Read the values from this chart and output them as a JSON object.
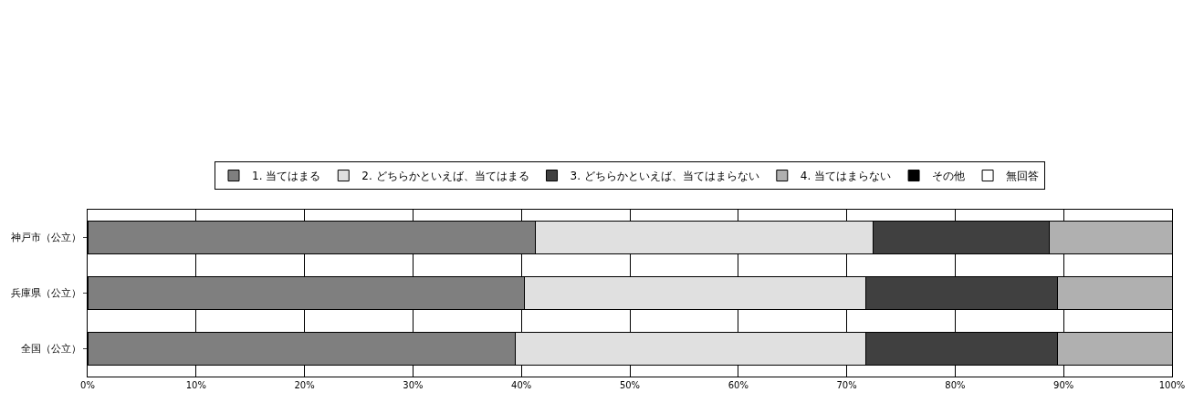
{
  "chart_data": {
    "type": "bar",
    "orientation": "horizontal",
    "stacked": true,
    "categories": [
      "神戸市（公立）",
      "兵庫県（公立）",
      "全国（公立）"
    ],
    "series": [
      {
        "name": "1. 当てはまる",
        "color": "#7f7f7f",
        "values": [
          41.3,
          40.3,
          39.4
        ]
      },
      {
        "name": "2. どちらかといえば、当てはまる",
        "color": "#e0e0e0",
        "values": [
          31.1,
          31.5,
          32.4
        ]
      },
      {
        "name": "3. どちらかといえば、当てはまらない",
        "color": "#404040",
        "values": [
          16.3,
          17.6,
          17.6
        ]
      },
      {
        "name": "4. 当てはまらない",
        "color": "#b0b0b0",
        "values": [
          11.3,
          10.6,
          10.6
        ]
      },
      {
        "name": "その他",
        "color": "#000000",
        "values": [
          0,
          0,
          0
        ]
      },
      {
        "name": "無回答",
        "color": "#ffffff",
        "values": [
          0,
          0,
          0
        ]
      }
    ],
    "xlim": [
      0,
      100
    ],
    "xticks": [
      {
        "value": 0,
        "label": "0%"
      },
      {
        "value": 10,
        "label": "10%"
      },
      {
        "value": 20,
        "label": "20%"
      },
      {
        "value": 30,
        "label": "30%"
      },
      {
        "value": 40,
        "label": "40%"
      },
      {
        "value": 50,
        "label": "50%"
      },
      {
        "value": 60,
        "label": "60%"
      },
      {
        "value": 70,
        "label": "70%"
      },
      {
        "value": 80,
        "label": "80%"
      },
      {
        "value": 90,
        "label": "90%"
      },
      {
        "value": 100,
        "label": "100%"
      }
    ],
    "grid": "x",
    "legend": "top"
  }
}
